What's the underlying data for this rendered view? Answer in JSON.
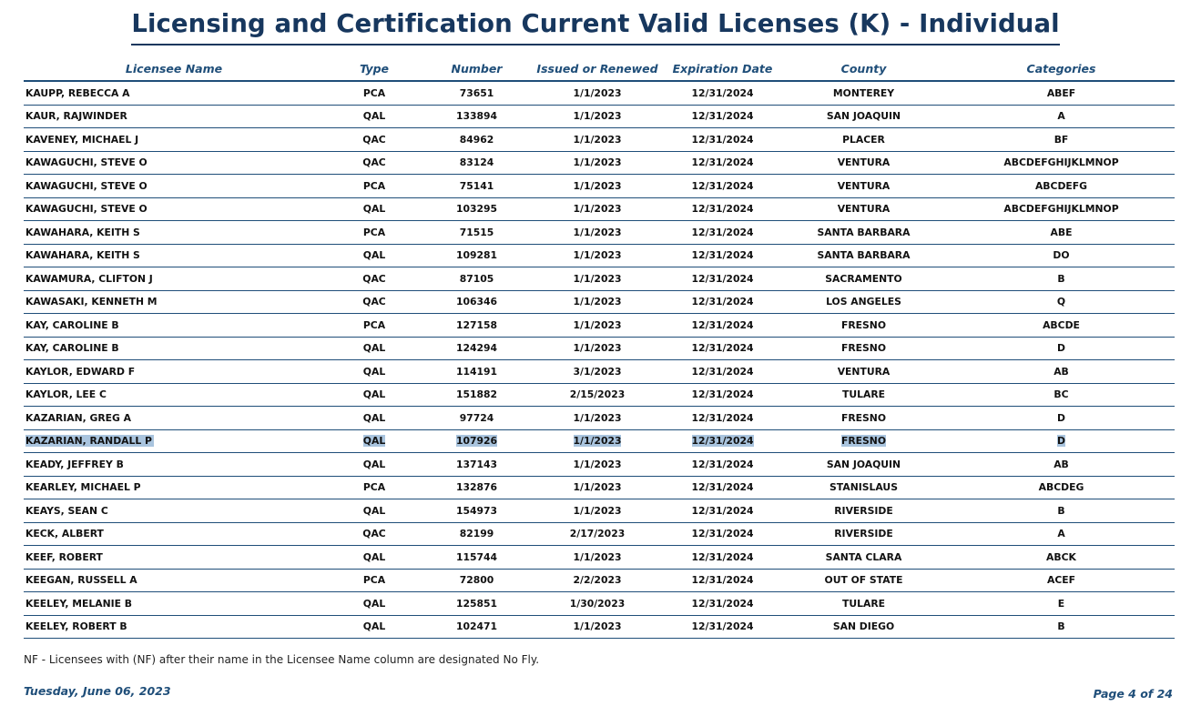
{
  "title": "Licensing and Certification Current Valid Licenses (K) - Individual",
  "columns": [
    "Licensee Name",
    "Type",
    "Number",
    "Issued or Renewed",
    "Expiration Date",
    "County",
    "Categories"
  ],
  "rows": [
    [
      "KAUPP, REBECCA A",
      "PCA",
      "73651",
      "1/1/2023",
      "12/31/2024",
      "MONTEREY",
      "ABEF"
    ],
    [
      "KAUR, RAJWINDER",
      "QAL",
      "133894",
      "1/1/2023",
      "12/31/2024",
      "SAN JOAQUIN",
      "A"
    ],
    [
      "KAVENEY, MICHAEL J",
      "QAC",
      "84962",
      "1/1/2023",
      "12/31/2024",
      "PLACER",
      "BF"
    ],
    [
      "KAWAGUCHI, STEVE O",
      "QAC",
      "83124",
      "1/1/2023",
      "12/31/2024",
      "VENTURA",
      "ABCDEFGHIJKLMNOP"
    ],
    [
      "KAWAGUCHI, STEVE O",
      "PCA",
      "75141",
      "1/1/2023",
      "12/31/2024",
      "VENTURA",
      "ABCDEFG"
    ],
    [
      "KAWAGUCHI, STEVE O",
      "QAL",
      "103295",
      "1/1/2023",
      "12/31/2024",
      "VENTURA",
      "ABCDEFGHIJKLMNOP"
    ],
    [
      "KAWAHARA, KEITH S",
      "PCA",
      "71515",
      "1/1/2023",
      "12/31/2024",
      "SANTA BARBARA",
      "ABE"
    ],
    [
      "KAWAHARA, KEITH S",
      "QAL",
      "109281",
      "1/1/2023",
      "12/31/2024",
      "SANTA BARBARA",
      "DO"
    ],
    [
      "KAWAMURA, CLIFTON J",
      "QAC",
      "87105",
      "1/1/2023",
      "12/31/2024",
      "SACRAMENTO",
      "B"
    ],
    [
      "KAWASAKI, KENNETH M",
      "QAC",
      "106346",
      "1/1/2023",
      "12/31/2024",
      "LOS ANGELES",
      "Q"
    ],
    [
      "KAY, CAROLINE B",
      "PCA",
      "127158",
      "1/1/2023",
      "12/31/2024",
      "FRESNO",
      "ABCDE"
    ],
    [
      "KAY, CAROLINE B",
      "QAL",
      "124294",
      "1/1/2023",
      "12/31/2024",
      "FRESNO",
      "D"
    ],
    [
      "KAYLOR, EDWARD F",
      "QAL",
      "114191",
      "3/1/2023",
      "12/31/2024",
      "VENTURA",
      "AB"
    ],
    [
      "KAYLOR, LEE C",
      "QAL",
      "151882",
      "2/15/2023",
      "12/31/2024",
      "TULARE",
      "BC"
    ],
    [
      "KAZARIAN, GREG A",
      "QAL",
      "97724",
      "1/1/2023",
      "12/31/2024",
      "FRESNO",
      "D"
    ],
    [
      "KAZARIAN, RANDALL P",
      "QAL",
      "107926",
      "1/1/2023",
      "12/31/2024",
      "FRESNO",
      "D"
    ],
    [
      "KEADY, JEFFREY B",
      "QAL",
      "137143",
      "1/1/2023",
      "12/31/2024",
      "SAN JOAQUIN",
      "AB"
    ],
    [
      "KEARLEY, MICHAEL P",
      "PCA",
      "132876",
      "1/1/2023",
      "12/31/2024",
      "STANISLAUS",
      "ABCDEG"
    ],
    [
      "KEAYS, SEAN C",
      "QAL",
      "154973",
      "1/1/2023",
      "12/31/2024",
      "RIVERSIDE",
      "B"
    ],
    [
      "KECK, ALBERT",
      "QAC",
      "82199",
      "2/17/2023",
      "12/31/2024",
      "RIVERSIDE",
      "A"
    ],
    [
      "KEEF, ROBERT",
      "QAL",
      "115744",
      "1/1/2023",
      "12/31/2024",
      "SANTA CLARA",
      "ABCK"
    ],
    [
      "KEEGAN, RUSSELL A",
      "PCA",
      "72800",
      "2/2/2023",
      "12/31/2024",
      "OUT OF STATE",
      "ACEF"
    ],
    [
      "KEELEY, MELANIE B",
      "QAL",
      "125851",
      "1/30/2023",
      "12/31/2024",
      "TULARE",
      "E"
    ],
    [
      "KEELEY, ROBERT B",
      "QAL",
      "102471",
      "1/1/2023",
      "12/31/2024",
      "SAN DIEGO",
      "B"
    ]
  ],
  "selected_row": 15,
  "note": "NF - Licensees with (NF) after their name in the Licensee Name column are designated No Fly.",
  "footer_date": "Tuesday, June 06, 2023",
  "page_label": "Page 4 of 24",
  "colors": {
    "heading": "#17375e",
    "rule": "#1f4e79",
    "selection": "#a9c4de"
  }
}
